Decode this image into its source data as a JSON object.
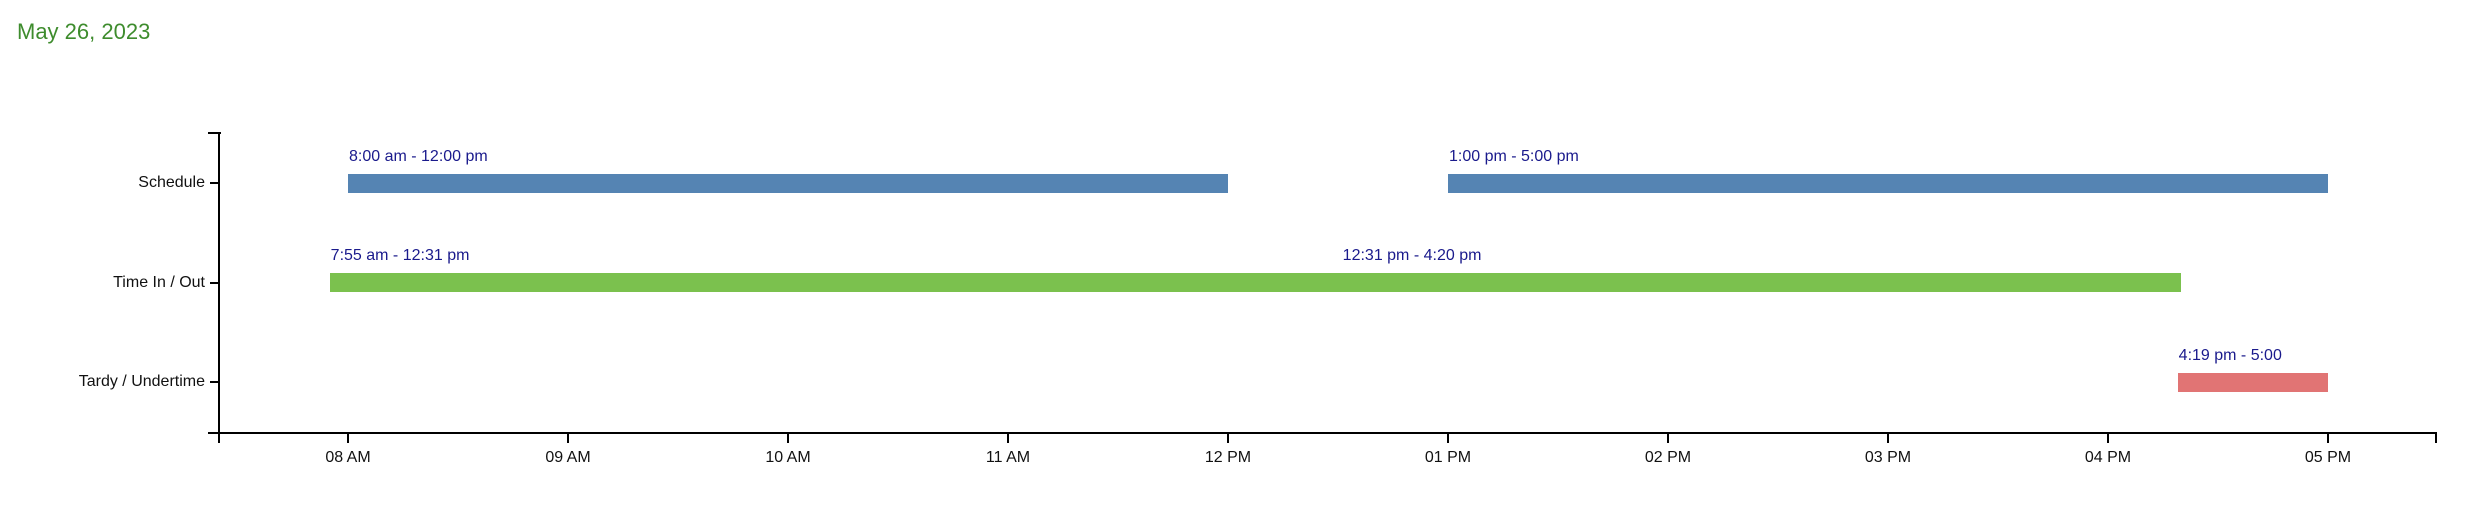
{
  "title": {
    "text": "May 26, 2023",
    "color": "#3e8c2d"
  },
  "colors": {
    "axis": "#000000",
    "bar_label": "#1a1a8c",
    "schedule_bar": "#5584b3",
    "time_in_out_bar": "#7bc14e",
    "tardy_undertime_bar": "#e17474"
  },
  "chart_data": {
    "type": "gantt",
    "title": "May 26, 2023",
    "legend": "none",
    "grid": "off",
    "x_axis": {
      "unit": "hour of day",
      "tick_labels": [
        "08 AM",
        "09 AM",
        "10 AM",
        "11 AM",
        "12 PM",
        "01 PM",
        "02 PM",
        "03 PM",
        "04 PM",
        "05 PM"
      ],
      "tick_hours": [
        8,
        9,
        10,
        11,
        12,
        13,
        14,
        15,
        16,
        17
      ],
      "xlim_hours": [
        7.37,
        17.5
      ]
    },
    "rows": [
      {
        "label": "Schedule",
        "color_key": "schedule_bar",
        "bars": [
          {
            "label": "8:00 am - 12:00 pm",
            "start_hour": 8.0,
            "end_hour": 12.0
          },
          {
            "label": "1:00 pm - 5:00 pm",
            "start_hour": 13.0,
            "end_hour": 17.0
          }
        ]
      },
      {
        "label": "Time In / Out",
        "color_key": "time_in_out_bar",
        "bars": [
          {
            "label": "7:55 am - 12:31 pm",
            "start_hour": 7.9167,
            "end_hour": 12.5167
          },
          {
            "label": "12:31 pm - 4:20 pm",
            "start_hour": 12.5167,
            "end_hour": 16.3333
          }
        ]
      },
      {
        "label": "Tardy / Undertime",
        "color_key": "tardy_undertime_bar",
        "bars": [
          {
            "label": "4:19 pm - 5:00",
            "start_hour": 16.3167,
            "end_hour": 17.0
          }
        ]
      }
    ]
  }
}
